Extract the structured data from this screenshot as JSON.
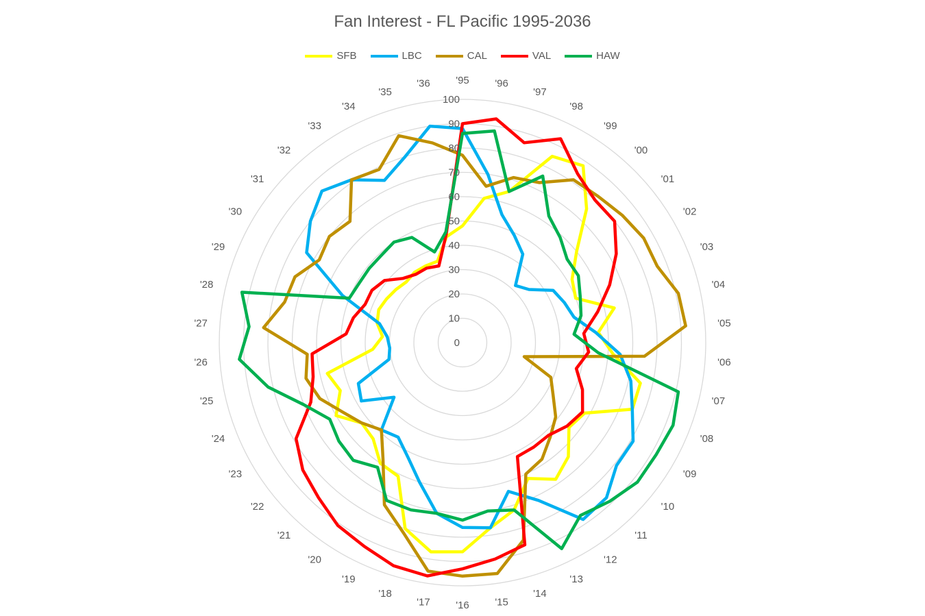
{
  "chart_data": {
    "type": "radar",
    "title": "Fan Interest - FL Pacific 1995-2036",
    "categories": [
      "'95",
      "'96",
      "'97",
      "'98",
      "'99",
      "'00",
      "'01",
      "'02",
      "'03",
      "'04",
      "'05",
      "'06",
      "'07",
      "'08",
      "'09",
      "'10",
      "'11",
      "'12",
      "'13",
      "'14",
      "'15",
      "'16",
      "'17",
      "'18",
      "'19",
      "'20",
      "'21",
      "'22",
      "'23",
      "'24",
      "'25",
      "'26",
      "'27",
      "'28",
      "'29",
      "'30",
      "'31",
      "'32",
      "'33",
      "'34",
      "'35",
      "'36"
    ],
    "rlim": [
      0,
      100
    ],
    "r_ticks": [
      0,
      10,
      20,
      30,
      40,
      50,
      60,
      70,
      80,
      90,
      100
    ],
    "grid": true,
    "legend_position": "top",
    "series": [
      {
        "name": "SFB",
        "color": "#FFFF00",
        "values": [
          48,
          60,
          65,
          85,
          88,
          75,
          60,
          52,
          50,
          64,
          56,
          62,
          75,
          75,
          58,
          56,
          64,
          68,
          62,
          72,
          77,
          86,
          87,
          80,
          61,
          60,
          54,
          53,
          60,
          54,
          57,
          37,
          33,
          36,
          37,
          36,
          35,
          34,
          35,
          35,
          35,
          44
        ]
      },
      {
        "name": "LBC",
        "color": "#00B0F0",
        "values": [
          88,
          70,
          55,
          49,
          44,
          32,
          35,
          43,
          45,
          47,
          55,
          65,
          71,
          75,
          81,
          81,
          87,
          88,
          72,
          64,
          77,
          76,
          71,
          60,
          52,
          47,
          49,
          36,
          48,
          46,
          31,
          30,
          31,
          35,
          53,
          74,
          80,
          85,
          81,
          74,
          80,
          90
        ]
      },
      {
        "name": "CAL",
        "color": "#BF9000",
        "values": [
          77,
          65,
          71,
          73,
          81,
          82,
          84,
          86,
          86,
          91,
          92,
          75,
          26,
          39,
          43,
          49,
          53,
          58,
          60,
          85,
          96,
          96,
          95,
          82,
          74,
          58,
          49,
          53,
          57,
          63,
          66,
          64,
          82,
          75,
          74,
          68,
          70,
          68,
          81,
          79,
          89,
          83
        ]
      },
      {
        "name": "VAL",
        "color": "#FF0000",
        "values": [
          90,
          93,
          86,
          93,
          84,
          80,
          80,
          73,
          65,
          57,
          50,
          52,
          48,
          53,
          57,
          55,
          52,
          52,
          52,
          87,
          90,
          93,
          97,
          96,
          93,
          91,
          87,
          84,
          79,
          67,
          63,
          62,
          48,
          46,
          43,
          43,
          41,
          36,
          34,
          34,
          33,
          45
        ]
      },
      {
        "name": "HAW",
        "color": "#00B050",
        "values": [
          86,
          88,
          65,
          76,
          63,
          59,
          55,
          55,
          52,
          50,
          46,
          56,
          91,
          93,
          92,
          92,
          89,
          86,
          94,
          72,
          70,
          73,
          71,
          72,
          72,
          62,
          66,
          65,
          63,
          70,
          82,
          92,
          88,
          93,
          50,
          49,
          49,
          49,
          50,
          48,
          39,
          46
        ]
      }
    ]
  }
}
